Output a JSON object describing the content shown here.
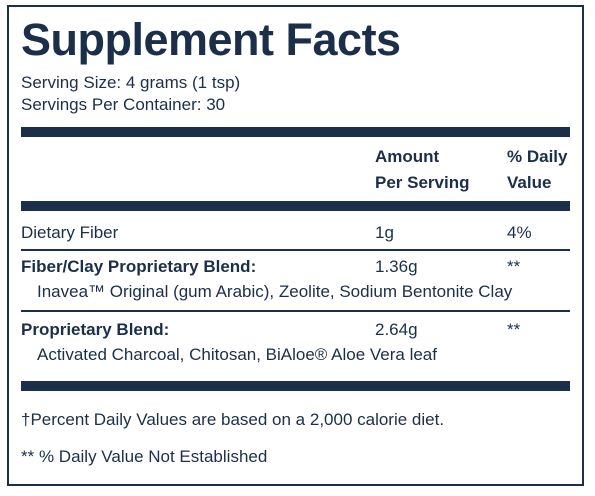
{
  "title": "Supplement Facts",
  "serving_size": "Serving Size: 4 grams (1 tsp)",
  "servings_per_container": "Servings Per Container: 30",
  "header": {
    "amount_line1": "Amount",
    "amount_line2": "Per Serving",
    "dv_line1": "% Daily",
    "dv_line2": "Value"
  },
  "rows": [
    {
      "name": "Dietary Fiber",
      "amount": "1g",
      "dv": "4%"
    },
    {
      "name": "Fiber/Clay Proprietary Blend:",
      "amount": "1.36g",
      "dv": "**",
      "ingredients": "Inavea™ Original (gum Arabic), Zeolite, Sodium Bentonite Clay"
    },
    {
      "name": "Proprietary Blend:",
      "amount": "2.64g",
      "dv": "**",
      "ingredients": "Activated Charcoal, Chitosan, BiAloe® Aloe Vera leaf"
    }
  ],
  "footnotes": [
    "†Percent Daily Values are based on a 2,000 calorie diet.",
    "** % Daily Value Not Established"
  ],
  "colors": {
    "ink": "#1b2f4a",
    "background": "#ffffff"
  }
}
